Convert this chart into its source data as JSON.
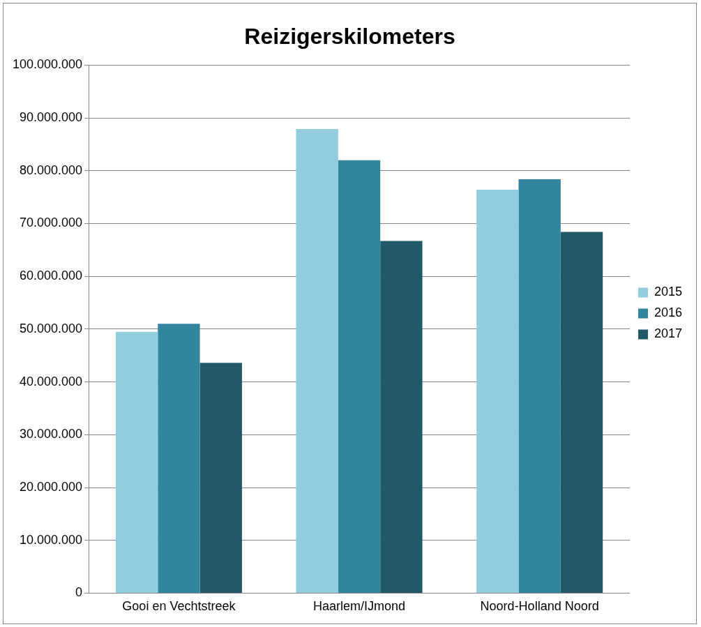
{
  "chart_data": {
    "type": "bar",
    "title": "Reizigerskilometers",
    "categories": [
      "Gooi en Vechtstreek",
      "Haarlem/IJmond",
      "Noord-Holland Noord"
    ],
    "series": [
      {
        "name": "2015",
        "color": "#93cddd",
        "values": [
          49500000,
          87900000,
          76400000
        ]
      },
      {
        "name": "2016",
        "color": "#31859c",
        "values": [
          51000000,
          82000000,
          78400000
        ]
      },
      {
        "name": "2017",
        "color": "#215968",
        "values": [
          43600000,
          66700000,
          68400000
        ]
      }
    ],
    "ylim": [
      0,
      100000000
    ],
    "yticks": [
      0,
      {
        "value": 10000000,
        "label": "10.000.000"
      },
      {
        "value": 20000000,
        "label": "20.000.000"
      },
      {
        "value": 30000000,
        "label": "30.000.000"
      },
      {
        "value": 40000000,
        "label": "40.000.000"
      },
      {
        "value": 50000000,
        "label": "50.000.000"
      },
      {
        "value": 60000000,
        "label": "60.000.000"
      },
      {
        "value": 70000000,
        "label": "70.000.000"
      },
      {
        "value": 80000000,
        "label": "80.000.000"
      },
      {
        "value": 90000000,
        "label": "90.000.000"
      },
      {
        "value": 100000000,
        "label": "100.000.000"
      }
    ],
    "grid": "y",
    "legend": "right"
  }
}
